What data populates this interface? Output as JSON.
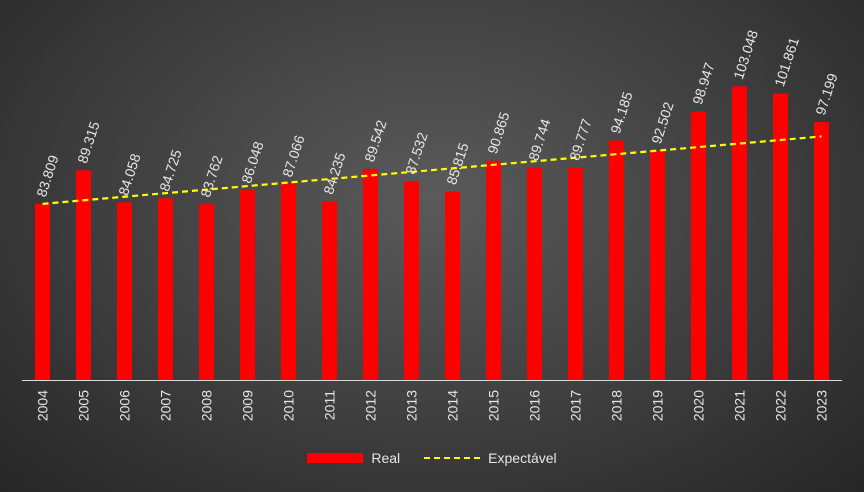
{
  "chart_data": {
    "type": "bar",
    "categories": [
      "2004",
      "2005",
      "2006",
      "2007",
      "2008",
      "2009",
      "2010",
      "2011",
      "2012",
      "2013",
      "2014",
      "2015",
      "2016",
      "2017",
      "2018",
      "2019",
      "2020",
      "2021",
      "2022",
      "2023"
    ],
    "series": [
      {
        "name": "Real",
        "type": "bar",
        "color": "#ff0000",
        "values": [
          83809,
          89315,
          84058,
          84725,
          83762,
          86048,
          87066,
          84235,
          89542,
          87532,
          85815,
          90865,
          89744,
          89777,
          94185,
          92502,
          98947,
          103048,
          101861,
          97199
        ],
        "labels": [
          "83.809",
          "89.315",
          "84.058",
          "84.725",
          "83.762",
          "86.048",
          "87.066",
          "84.235",
          "89.542",
          "87.532",
          "85.815",
          "90.865",
          "89.744",
          "89.777",
          "94.185",
          "92.502",
          "98.947",
          "103.048",
          "101.861",
          "97.199"
        ]
      },
      {
        "name": "Expectável",
        "type": "line",
        "style": "dashed",
        "color": "#ffff00",
        "values": [
          83809,
          84400,
          84980,
          85560,
          86140,
          86720,
          87300,
          87880,
          88460,
          89040,
          89620,
          90200,
          90780,
          91360,
          91940,
          92520,
          93100,
          93680,
          94260,
          94840
        ]
      }
    ],
    "ylim": [
      55000,
      108000
    ],
    "grid": false,
    "legend_position": "bottom",
    "title": "",
    "xlabel": "",
    "ylabel": ""
  },
  "legend": {
    "real": "Real",
    "expected": "Expectável"
  },
  "colors": {
    "bar": "#ff0000",
    "line": "#ffff00",
    "axis": "#d9d9d9",
    "text": "#e6e6e6"
  }
}
